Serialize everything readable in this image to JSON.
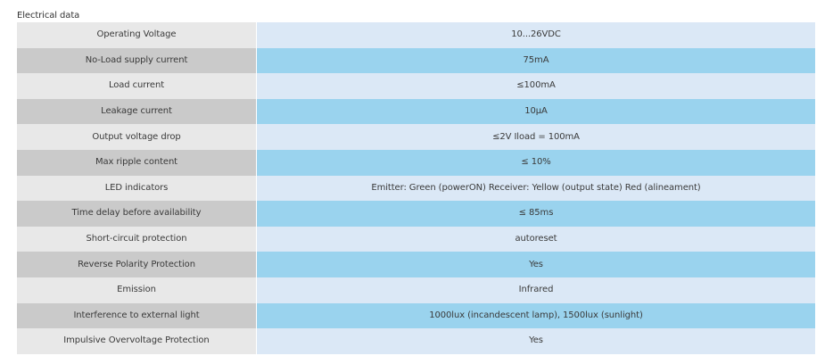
{
  "section": {
    "title": "Electrical data"
  },
  "rows": [
    {
      "label": "Operating Voltage",
      "value": "10...26VDC"
    },
    {
      "label": "No-Load supply current",
      "value": "75mA"
    },
    {
      "label": "Load current",
      "value": "≤100mA"
    },
    {
      "label": "Leakage current",
      "value": "10μA"
    },
    {
      "label": "Output voltage drop",
      "value": "≤2V Iload = 100mA"
    },
    {
      "label": "Max ripple content",
      "value": "≤ 10%"
    },
    {
      "label": "LED indicators",
      "value": "Emitter: Green (powerON) Receiver: Yellow (output state) Red (alineament)"
    },
    {
      "label": "Time delay before availability",
      "value": "≤ 85ms"
    },
    {
      "label": "Short-circuit protection",
      "value": "autoreset"
    },
    {
      "label": "Reverse Polarity Protection",
      "value": "Yes"
    },
    {
      "label": "Emission",
      "value": "Infrared"
    },
    {
      "label": "Interference to external light",
      "value": "1000lux (incandescent lamp), 1500lux (sunlight)"
    },
    {
      "label": "Impulsive Overvoltage Protection",
      "value": "Yes"
    }
  ],
  "colors": {
    "label_light": "#e8e8e8",
    "label_dark": "#cacaca",
    "value_light": "#dbe8f6",
    "value_dark": "#9ad3ee"
  }
}
